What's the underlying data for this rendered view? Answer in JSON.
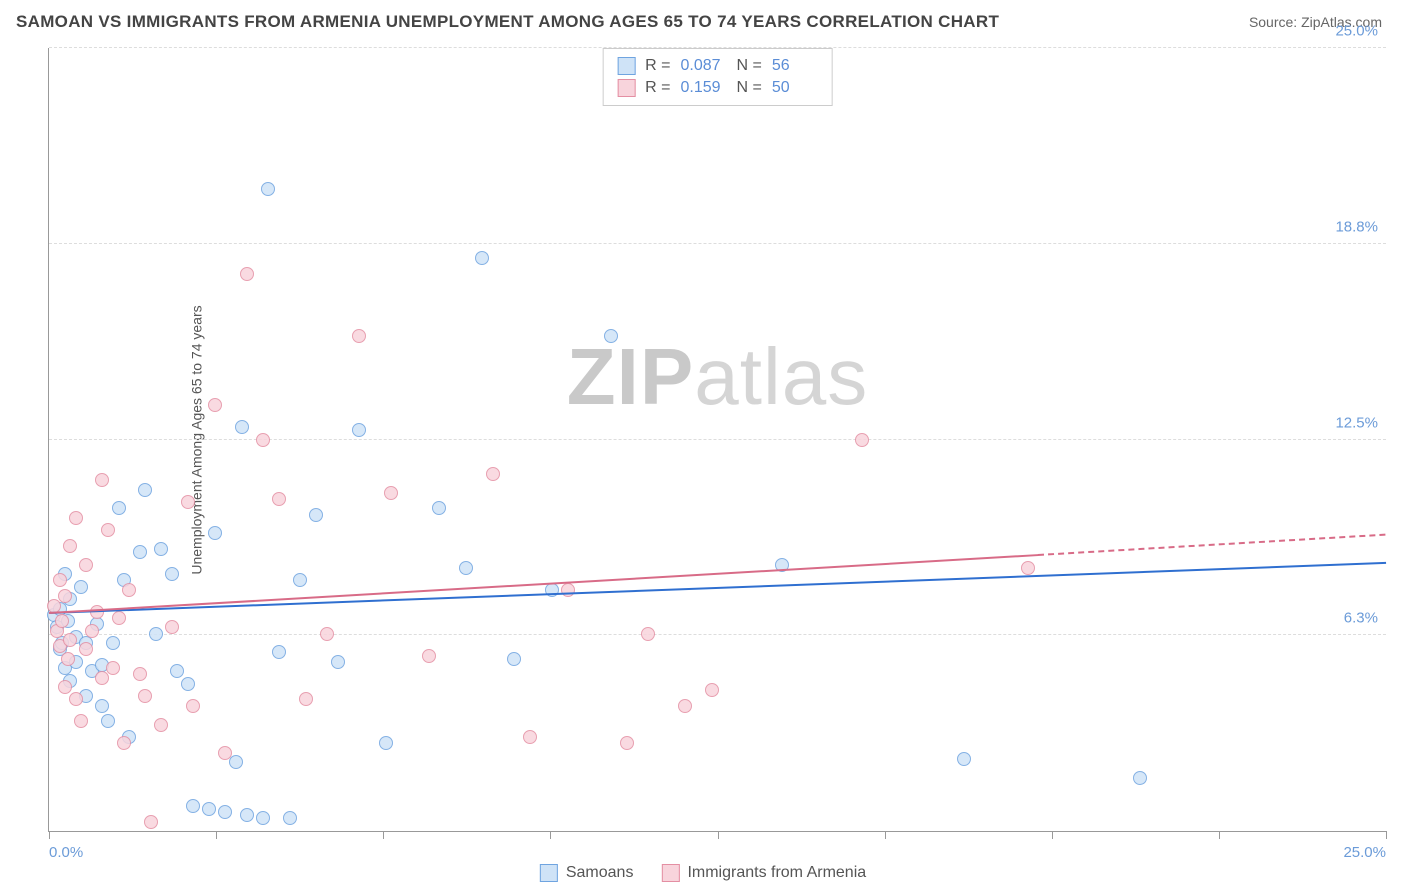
{
  "title": "SAMOAN VS IMMIGRANTS FROM ARMENIA UNEMPLOYMENT AMONG AGES 65 TO 74 YEARS CORRELATION CHART",
  "source": "Source: ZipAtlas.com",
  "y_axis_label": "Unemployment Among Ages 65 to 74 years",
  "watermark_bold": "ZIP",
  "watermark_light": "atlas",
  "chart": {
    "type": "scatter",
    "xlim": [
      0,
      25
    ],
    "ylim": [
      0,
      25
    ],
    "x_ticks": [
      0,
      3.125,
      6.25,
      9.375,
      12.5,
      15.625,
      18.75,
      21.875,
      25
    ],
    "x_tick_labels_shown": {
      "0": "0.0%",
      "25": "25.0%"
    },
    "y_ticks": [
      6.25,
      12.5,
      18.75,
      25
    ],
    "y_tick_labels": [
      "6.3%",
      "12.5%",
      "18.8%",
      "25.0%"
    ],
    "grid_color": "#dddddd",
    "axis_color": "#999999",
    "background_color": "#ffffff"
  },
  "series": {
    "samoans": {
      "label": "Samoans",
      "fill": "#cfe3f7",
      "stroke": "#6fa4e0",
      "trend_color": "#2f6fd0",
      "marker_radius": 7,
      "R": "0.087",
      "N": "56",
      "trend": {
        "y_at_x0": 7.0,
        "y_at_xmax": 8.6
      },
      "points": [
        [
          0.1,
          6.9
        ],
        [
          0.15,
          6.5
        ],
        [
          0.2,
          7.1
        ],
        [
          0.2,
          5.8
        ],
        [
          0.25,
          6.0
        ],
        [
          0.3,
          8.2
        ],
        [
          0.3,
          5.2
        ],
        [
          0.35,
          6.7
        ],
        [
          0.4,
          7.4
        ],
        [
          0.4,
          4.8
        ],
        [
          0.5,
          5.4
        ],
        [
          0.5,
          6.2
        ],
        [
          0.6,
          7.8
        ],
        [
          0.7,
          6.0
        ],
        [
          0.7,
          4.3
        ],
        [
          0.8,
          5.1
        ],
        [
          0.9,
          6.6
        ],
        [
          1.0,
          5.3
        ],
        [
          1.0,
          4.0
        ],
        [
          1.1,
          3.5
        ],
        [
          1.2,
          6.0
        ],
        [
          1.3,
          10.3
        ],
        [
          1.4,
          8.0
        ],
        [
          1.5,
          3.0
        ],
        [
          1.7,
          8.9
        ],
        [
          1.8,
          10.9
        ],
        [
          2.0,
          6.3
        ],
        [
          2.1,
          9.0
        ],
        [
          2.3,
          8.2
        ],
        [
          2.4,
          5.1
        ],
        [
          2.6,
          4.7
        ],
        [
          2.7,
          0.8
        ],
        [
          3.0,
          0.7
        ],
        [
          3.1,
          9.5
        ],
        [
          3.3,
          0.6
        ],
        [
          3.5,
          2.2
        ],
        [
          3.6,
          12.9
        ],
        [
          3.7,
          0.5
        ],
        [
          4.0,
          0.4
        ],
        [
          4.1,
          20.5
        ],
        [
          4.3,
          5.7
        ],
        [
          4.5,
          0.4
        ],
        [
          4.7,
          8.0
        ],
        [
          5.0,
          10.1
        ],
        [
          5.4,
          5.4
        ],
        [
          5.8,
          12.8
        ],
        [
          6.3,
          2.8
        ],
        [
          7.3,
          10.3
        ],
        [
          7.8,
          8.4
        ],
        [
          8.1,
          18.3
        ],
        [
          8.7,
          5.5
        ],
        [
          9.4,
          7.7
        ],
        [
          10.5,
          15.8
        ],
        [
          13.7,
          8.5
        ],
        [
          17.1,
          2.3
        ],
        [
          20.4,
          1.7
        ]
      ]
    },
    "armenia": {
      "label": "Immigrants from Armenia",
      "fill": "#f8d4dc",
      "stroke": "#e48fa3",
      "trend_color": "#d86b87",
      "marker_radius": 7,
      "R": "0.159",
      "N": "50",
      "trend": {
        "y_at_x0": 7.0,
        "y_at_xmax": 9.5,
        "dash_from_x": 18.5
      },
      "points": [
        [
          0.1,
          7.2
        ],
        [
          0.15,
          6.4
        ],
        [
          0.2,
          5.9
        ],
        [
          0.2,
          8.0
        ],
        [
          0.25,
          6.7
        ],
        [
          0.3,
          7.5
        ],
        [
          0.3,
          4.6
        ],
        [
          0.35,
          5.5
        ],
        [
          0.4,
          6.1
        ],
        [
          0.4,
          9.1
        ],
        [
          0.5,
          10.0
        ],
        [
          0.5,
          4.2
        ],
        [
          0.6,
          3.5
        ],
        [
          0.7,
          8.5
        ],
        [
          0.7,
          5.8
        ],
        [
          0.8,
          6.4
        ],
        [
          0.9,
          7.0
        ],
        [
          1.0,
          4.9
        ],
        [
          1.0,
          11.2
        ],
        [
          1.1,
          9.6
        ],
        [
          1.2,
          5.2
        ],
        [
          1.3,
          6.8
        ],
        [
          1.4,
          2.8
        ],
        [
          1.5,
          7.7
        ],
        [
          1.7,
          5.0
        ],
        [
          1.8,
          4.3
        ],
        [
          1.9,
          0.3
        ],
        [
          2.1,
          3.4
        ],
        [
          2.3,
          6.5
        ],
        [
          2.6,
          10.5
        ],
        [
          2.7,
          4.0
        ],
        [
          3.1,
          13.6
        ],
        [
          3.3,
          2.5
        ],
        [
          3.7,
          17.8
        ],
        [
          4.0,
          12.5
        ],
        [
          4.3,
          10.6
        ],
        [
          4.8,
          4.2
        ],
        [
          5.2,
          6.3
        ],
        [
          5.8,
          15.8
        ],
        [
          6.4,
          10.8
        ],
        [
          7.1,
          5.6
        ],
        [
          8.3,
          11.4
        ],
        [
          9.0,
          3.0
        ],
        [
          9.7,
          7.7
        ],
        [
          10.8,
          2.8
        ],
        [
          11.2,
          6.3
        ],
        [
          11.9,
          4.0
        ],
        [
          12.4,
          4.5
        ],
        [
          15.2,
          12.5
        ],
        [
          18.3,
          8.4
        ]
      ]
    }
  },
  "stat_labels": {
    "R": "R =",
    "N": "N ="
  },
  "legend_order": [
    "samoans",
    "armenia"
  ]
}
